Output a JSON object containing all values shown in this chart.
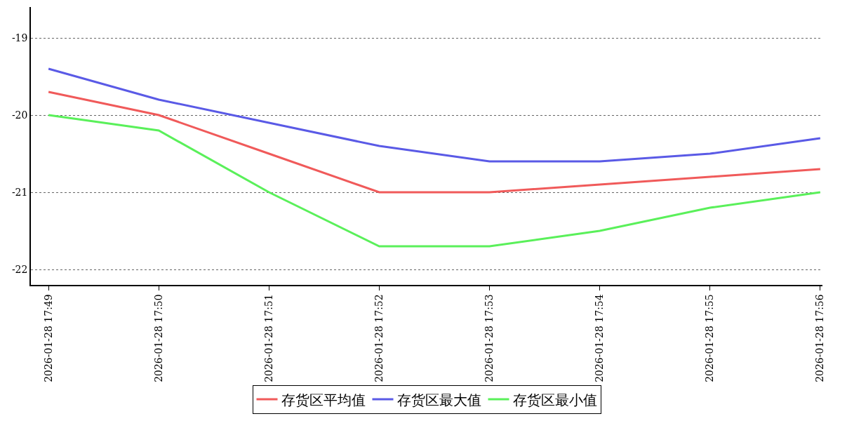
{
  "chart_data": {
    "type": "line",
    "categories": [
      "2026-01-28 17:49",
      "2026-01-28 17:50",
      "2026-01-28 17:51",
      "2026-01-28 17:52",
      "2026-01-28 17:53",
      "2026-01-28 17:54",
      "2026-01-28 17:55",
      "2026-01-28 17:56"
    ],
    "series": [
      {
        "name": "存货区平均值",
        "color": "#f05a5a",
        "values": [
          -19.7,
          -20,
          -20.5,
          -21,
          -21,
          -20.9,
          -20.8,
          -20.7
        ]
      },
      {
        "name": "存货区最大值",
        "color": "#5a5ae6",
        "values": [
          -19.4,
          -19.8,
          -20.1,
          -20.4,
          -20.6,
          -20.6,
          -20.5,
          -20.3
        ]
      },
      {
        "name": "存货区最小值",
        "color": "#5af05a",
        "values": [
          -20,
          -20.2,
          -21,
          -21.7,
          -21.7,
          -21.5,
          -21.2,
          -21
        ]
      }
    ],
    "ylim": [
      -22.2,
      -18.6
    ],
    "yticks": [
      -22,
      -21,
      -20,
      -19
    ],
    "grid": "y",
    "legend": "bottom",
    "marker": "none",
    "line_style": "solid"
  }
}
